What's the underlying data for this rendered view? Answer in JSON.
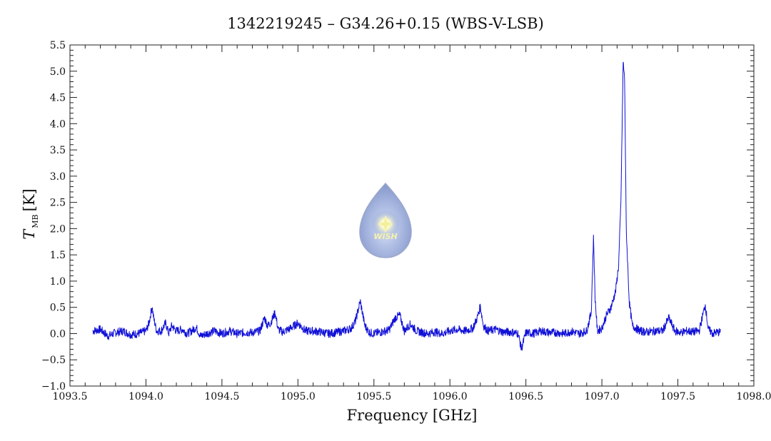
{
  "chart_data": {
    "type": "line",
    "title": "1342219245 – G34.26+0.15 (WBS-V-LSB)",
    "xlabel": "Frequency [GHz]",
    "ylabel_main": "T",
    "ylabel_sub": "MB",
    "ylabel_unit": "[K]",
    "xlim": [
      1093.5,
      1098.0
    ],
    "ylim": [
      -1.0,
      5.5
    ],
    "x_ticks": [
      1093.5,
      1094.0,
      1094.5,
      1095.0,
      1095.5,
      1096.0,
      1096.5,
      1097.0,
      1097.5,
      1098.0
    ],
    "x_tick_labels": [
      "1093.5",
      "1094.0",
      "1094.5",
      "1095.0",
      "1095.5",
      "1096.0",
      "1096.5",
      "1097.0",
      "1097.5",
      "1098.0"
    ],
    "y_ticks": [
      -1.0,
      -0.5,
      0.0,
      0.5,
      1.0,
      1.5,
      2.0,
      2.5,
      3.0,
      3.5,
      4.0,
      4.5,
      5.0,
      5.5
    ],
    "y_tick_labels": [
      "−1.0",
      "−0.5",
      "0.0",
      "0.5",
      "1.0",
      "1.5",
      "2.0",
      "2.5",
      "3.0",
      "3.5",
      "4.0",
      "4.5",
      "5.0",
      "5.5"
    ],
    "grid": false,
    "line_color": "#1010d8",
    "series": [
      {
        "x": [
          1093.65,
          1093.7,
          1093.75,
          1093.8,
          1093.85,
          1093.9,
          1093.95,
          1094.0,
          1094.02,
          1094.04,
          1094.05,
          1094.07,
          1094.1,
          1094.13,
          1094.15,
          1094.17,
          1094.2,
          1094.24,
          1094.27,
          1094.3,
          1094.33,
          1094.36,
          1094.4,
          1094.45,
          1094.5,
          1094.55,
          1094.6,
          1094.65,
          1094.7,
          1094.75,
          1094.78,
          1094.8,
          1094.82,
          1094.85,
          1094.87,
          1094.9,
          1094.95,
          1095.0,
          1095.05,
          1095.1,
          1095.15,
          1095.2,
          1095.25,
          1095.3,
          1095.35,
          1095.38,
          1095.41,
          1095.44,
          1095.47,
          1095.5,
          1095.55,
          1095.6,
          1095.64,
          1095.67,
          1095.7,
          1095.74,
          1095.78,
          1095.85,
          1095.9,
          1095.95,
          1096.0,
          1096.05,
          1096.1,
          1096.15,
          1096.18,
          1096.2,
          1096.22,
          1096.25,
          1096.3,
          1096.35,
          1096.4,
          1096.45,
          1096.47,
          1096.5,
          1096.55,
          1096.6,
          1096.65,
          1096.7,
          1096.75,
          1096.8,
          1096.85,
          1096.9,
          1096.93,
          1096.945,
          1096.955,
          1096.97,
          1097.0,
          1097.03,
          1097.06,
          1097.09,
          1097.11,
          1097.125,
          1097.14,
          1097.15,
          1097.16,
          1097.18,
          1097.2,
          1097.25,
          1097.3,
          1097.35,
          1097.4,
          1097.44,
          1097.48,
          1097.52,
          1097.56,
          1097.6,
          1097.64,
          1097.68,
          1097.7,
          1097.73,
          1097.75,
          1097.78
        ],
        "y": [
          0.05,
          0.08,
          -0.05,
          0.02,
          0.05,
          -0.02,
          0.0,
          0.05,
          0.2,
          0.52,
          0.3,
          0.05,
          0.05,
          0.2,
          0.0,
          0.15,
          0.05,
          0.08,
          0.0,
          0.05,
          0.12,
          -0.05,
          0.0,
          0.05,
          0.0,
          0.05,
          0.0,
          0.02,
          0.02,
          0.05,
          0.3,
          0.15,
          0.2,
          0.4,
          0.08,
          0.03,
          0.1,
          0.2,
          0.05,
          0.05,
          0.03,
          0.0,
          0.02,
          0.05,
          0.1,
          0.25,
          0.62,
          0.15,
          0.02,
          0.0,
          0.03,
          0.07,
          0.3,
          0.35,
          0.05,
          0.18,
          0.05,
          0.0,
          0.03,
          0.0,
          0.05,
          0.08,
          0.05,
          0.1,
          0.3,
          0.52,
          0.15,
          0.05,
          0.08,
          0.03,
          0.03,
          0.0,
          -0.3,
          0.02,
          0.0,
          0.05,
          0.02,
          0.02,
          0.0,
          0.04,
          0.0,
          0.05,
          0.4,
          1.85,
          0.7,
          0.05,
          0.1,
          0.35,
          0.5,
          0.8,
          1.3,
          2.5,
          5.2,
          4.8,
          2.0,
          0.6,
          0.15,
          0.05,
          0.03,
          0.05,
          0.05,
          0.3,
          0.05,
          0.02,
          0.05,
          0.03,
          0.05,
          0.55,
          0.08,
          0.0,
          0.02,
          0.03
        ]
      }
    ]
  },
  "watermark": {
    "text": "WISH"
  }
}
